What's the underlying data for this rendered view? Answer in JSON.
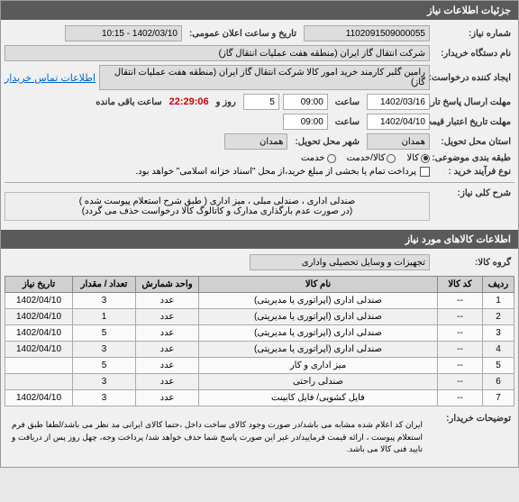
{
  "header": {
    "title": "جزئیات اطلاعات نیاز"
  },
  "form": {
    "need_number_label": "شماره نیاز:",
    "need_number": "1102091509000055",
    "announce_date_label": "تاریخ و ساعت اعلان عمومی:",
    "announce_date": "1402/03/10 - 10:15",
    "buyer_label": "نام دستگاه خریدار:",
    "buyer": "شرکت انتقال گاز ایران (منطقه هفت عملیات انتقال گاز)",
    "requester_label": "ایجاد کننده درخواست:",
    "requester": "رامین گلبر کارمند خرید امور کالا شرکت انتقال گاز ایران (منطقه هفت عملیات انتقال گاز)",
    "contact_link": "اطلاعات تماس خریدار",
    "deadline_label": "مهلت ارسال پاسخ تاریخ:",
    "deadline_date": "1402/03/16",
    "time_label": "ساعت",
    "deadline_time": "09:00",
    "remaining_label": "روز و",
    "remaining_days": "5",
    "remaining_time": "22:29:06",
    "remaining_suffix": "ساعت باقی مانده",
    "validity_label": "مهلت تاریخ اعتبار قیمت تا تاریخ:",
    "validity_date": "1402/04/10",
    "validity_time": "09:00",
    "province_label": "استان محل تحویل:",
    "province": "همدان",
    "city_label": "شهر محل تحویل:",
    "city": "همدان",
    "category_label": "طبقه بندی موضوعی:",
    "cat_service": "خدمت",
    "cat_goods_service": "کالا/خدمت",
    "cat_goods": "کالا",
    "purchase_type_label": "نوع فرآیند خرید :",
    "purchase_note": "پرداخت تمام یا بخشی از مبلغ خرید،از محل \"اسناد خزانه اسلامی\" خواهد بود."
  },
  "description": {
    "label": "شرح کلی نیاز:",
    "line1": "صندلی اداری ، صندلی مبلی ، میز اداری ( طبق شرح استعلام پیوست شده )",
    "line2": "(در صورت عدم بارگذاری مدارک و کاتالوگ کالا درخواست حذف می گردد)"
  },
  "goods_section": {
    "title": "اطلاعات کالاهای مورد نیاز",
    "group_label": "گروه کالا:",
    "group": "تجهیزات و وسایل تحصیلی واداری"
  },
  "table": {
    "columns": [
      "ردیف",
      "کد کالا",
      "نام کالا",
      "واحد شمارش",
      "تعداد / مقدار",
      "تاریخ نیاز"
    ],
    "rows": [
      [
        "1",
        "--",
        "صندلی اداری (اپراتوری یا مدیریتی)",
        "عدد",
        "3",
        "1402/04/10"
      ],
      [
        "2",
        "--",
        "صندلی اداری (اپراتوری یا مدیریتی)",
        "عدد",
        "1",
        "1402/04/10"
      ],
      [
        "3",
        "--",
        "صندلی اداری (اپراتوری یا مدیریتی)",
        "عدد",
        "5",
        "1402/04/10"
      ],
      [
        "4",
        "--",
        "صندلی اداری (اپراتوری یا مدیریتی)",
        "عدد",
        "3",
        "1402/04/10"
      ],
      [
        "5",
        "--",
        "میز اداری و کار",
        "عدد",
        "5",
        ""
      ],
      [
        "6",
        "--",
        "صندلی راحتی",
        "عدد",
        "3",
        ""
      ],
      [
        "7",
        "--",
        "فایل کشویی/ فایل کابینت",
        "عدد",
        "3",
        "1402/04/10"
      ]
    ]
  },
  "footer": {
    "label": "توضیحات خریدار:",
    "text": "ایران کد اعلام شده مشابه می باشد/در صورت وجود کالای ساخت داخل ،حتما کالای ایرانی مد نظر می باشد/لطفا طبق فرم استعلام پیوست ، ارائه قیمت فرمایید/در غیر این صورت پاسخ شما حذف خواهد شد/ پرداخت وجه، چهل روز پس از دریافت و تایید فنی کالا می باشد."
  }
}
